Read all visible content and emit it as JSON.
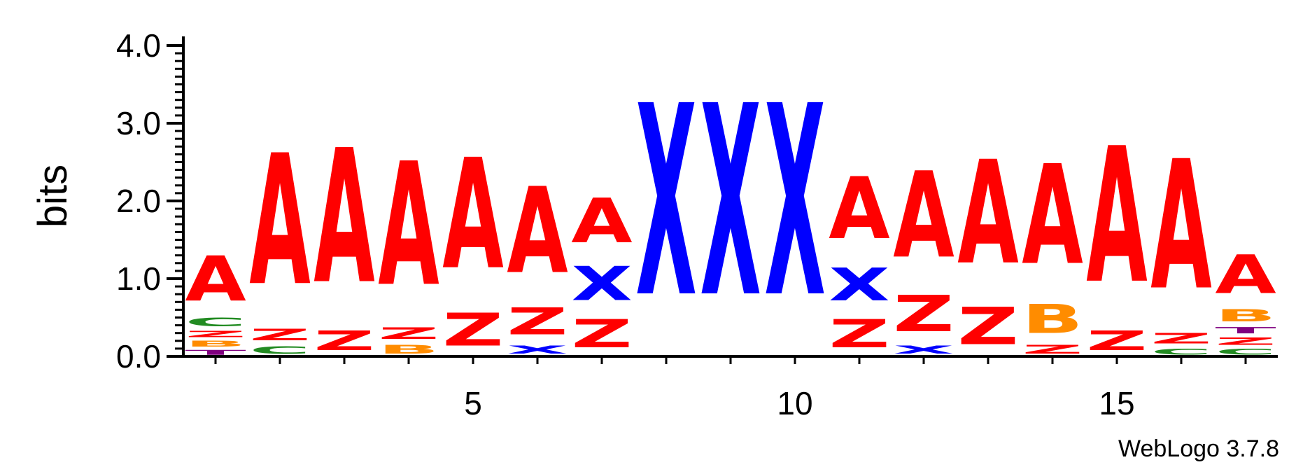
{
  "chart_data": {
    "type": "sequence-logo",
    "ylabel": "bits",
    "ylim": [
      0,
      4
    ],
    "y_ticks": [
      "0.0",
      "1.0",
      "2.0",
      "3.0",
      "4.0"
    ],
    "x_range": [
      0.5,
      17.5
    ],
    "x_tick_labels": [
      {
        "position": 5,
        "label": "5"
      },
      {
        "position": 10,
        "label": "10"
      },
      {
        "position": 15,
        "label": "15"
      }
    ],
    "credit": "WebLogo 3.7.8",
    "colors": {
      "A": "#ff0000",
      "Z": "#ff0000",
      "X": "#0000ff",
      "C": "#228b22",
      "B": "#ff8c00",
      "T": "#800080"
    },
    "positions": [
      {
        "pos": 1,
        "letters": [
          {
            "char": "T",
            "bits": 0.1
          },
          {
            "char": "B",
            "bits": 0.12
          },
          {
            "char": "Z",
            "bits": 0.13
          },
          {
            "char": "C",
            "bits": 0.18
          },
          {
            "char": "A",
            "bits": 0.93
          }
        ]
      },
      {
        "pos": 2,
        "letters": [
          {
            "char": "C",
            "bits": 0.16
          },
          {
            "char": "Z",
            "bits": 0.23
          },
          {
            "char": "A",
            "bits": 2.7
          }
        ]
      },
      {
        "pos": 3,
        "letters": [
          {
            "char": "Z",
            "bits": 0.4
          },
          {
            "char": "A",
            "bits": 2.77
          }
        ]
      },
      {
        "pos": 4,
        "letters": [
          {
            "char": "B",
            "bits": 0.18
          },
          {
            "char": "Z",
            "bits": 0.23
          },
          {
            "char": "A",
            "bits": 2.55
          }
        ]
      },
      {
        "pos": 5,
        "letters": [
          {
            "char": "Z",
            "bits": 0.68
          },
          {
            "char": "A",
            "bits": 2.28
          }
        ]
      },
      {
        "pos": 6,
        "letters": [
          {
            "char": "X",
            "bits": 0.17
          },
          {
            "char": "Z",
            "bits": 0.55
          },
          {
            "char": "A",
            "bits": 1.78
          }
        ]
      },
      {
        "pos": 7,
        "letters": [
          {
            "char": "Z",
            "bits": 0.58
          },
          {
            "char": "X",
            "bits": 0.7
          },
          {
            "char": "A",
            "bits": 0.92
          }
        ]
      },
      {
        "pos": 8,
        "letters": [
          {
            "char": "X",
            "bits": 3.95
          }
        ]
      },
      {
        "pos": 9,
        "letters": [
          {
            "char": "X",
            "bits": 3.95
          }
        ]
      },
      {
        "pos": 10,
        "letters": [
          {
            "char": "X",
            "bits": 3.95
          }
        ]
      },
      {
        "pos": 11,
        "letters": [
          {
            "char": "Z",
            "bits": 0.58
          },
          {
            "char": "X",
            "bits": 0.68
          },
          {
            "char": "A",
            "bits": 1.28
          }
        ]
      },
      {
        "pos": 12,
        "letters": [
          {
            "char": "X",
            "bits": 0.17
          },
          {
            "char": "Z",
            "bits": 0.75
          },
          {
            "char": "A",
            "bits": 1.78
          }
        ]
      },
      {
        "pos": 13,
        "letters": [
          {
            "char": "Z",
            "bits": 0.77
          },
          {
            "char": "A",
            "bits": 2.14
          }
        ]
      },
      {
        "pos": 14,
        "letters": [
          {
            "char": "Z",
            "bits": 0.18
          },
          {
            "char": "B",
            "bits": 0.6
          },
          {
            "char": "A",
            "bits": 2.06
          }
        ]
      },
      {
        "pos": 15,
        "letters": [
          {
            "char": "Z",
            "bits": 0.4
          },
          {
            "char": "A",
            "bits": 2.8
          }
        ]
      },
      {
        "pos": 16,
        "letters": [
          {
            "char": "C",
            "bits": 0.12
          },
          {
            "char": "Z",
            "bits": 0.22
          },
          {
            "char": "A",
            "bits": 2.67
          }
        ]
      },
      {
        "pos": 17,
        "letters": [
          {
            "char": "C",
            "bits": 0.12
          },
          {
            "char": "Z",
            "bits": 0.15
          },
          {
            "char": "T",
            "bits": 0.13
          },
          {
            "char": "B",
            "bits": 0.25
          },
          {
            "char": "A",
            "bits": 0.8
          }
        ]
      }
    ]
  }
}
